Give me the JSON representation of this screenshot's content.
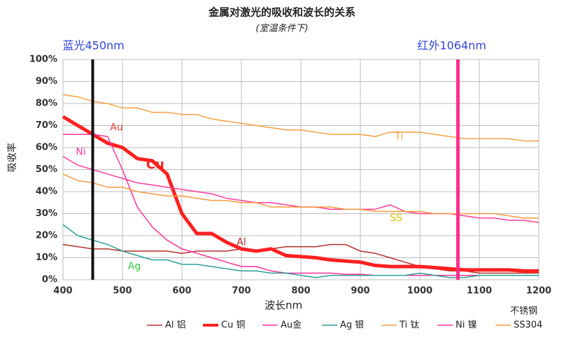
{
  "chart_data": {
    "type": "line",
    "title": "金属对激光的吸收和波长的关系",
    "subtitle": "(室温条件下)",
    "y_label": "吸收率",
    "x_label": "波长nm",
    "x": [
      400,
      425,
      450,
      475,
      500,
      525,
      550,
      575,
      600,
      625,
      650,
      675,
      700,
      725,
      750,
      775,
      800,
      825,
      850,
      875,
      900,
      925,
      950,
      975,
      1000,
      1025,
      1050,
      1075,
      1100,
      1125,
      1150,
      1175,
      1200
    ],
    "xlim": [
      400,
      1200
    ],
    "xticks": [
      400,
      500,
      600,
      700,
      800,
      900,
      1000,
      1100,
      1200
    ],
    "ylim": [
      0,
      100
    ],
    "yticks": [
      {
        "value": 0,
        "label": "0%"
      },
      {
        "value": 10,
        "label": "10%"
      },
      {
        "value": 20,
        "label": "20%"
      },
      {
        "value": 30,
        "label": "30%"
      },
      {
        "value": 40,
        "label": "40%"
      },
      {
        "value": 50,
        "label": "50%"
      },
      {
        "value": 60,
        "label": "60%"
      },
      {
        "value": 70,
        "label": "70%"
      },
      {
        "value": 80,
        "label": "80%"
      },
      {
        "value": 90,
        "label": "90%"
      },
      {
        "value": 100,
        "label": "100%"
      }
    ],
    "grid": true,
    "vlines": [
      {
        "x": 450,
        "label": "蓝光450nm",
        "color": "#111111"
      },
      {
        "x": 1064,
        "label": "红外1064nm",
        "color": "#ff2d8a"
      }
    ],
    "legend_note": "不锈钢",
    "series": [
      {
        "name": "Al 铝",
        "label": "Al",
        "color": "#b5302a",
        "label_color": "#b5302a",
        "width": 1.5,
        "values": [
          16,
          15,
          14,
          14,
          13,
          13,
          13,
          13,
          12,
          13,
          13,
          13,
          14,
          13,
          14,
          15,
          15,
          15,
          16,
          16,
          13,
          12,
          10,
          8,
          6,
          5,
          4,
          4,
          3,
          3,
          3,
          3,
          3
        ]
      },
      {
        "name": "Cu 铜",
        "label": "Cu",
        "color": "#ff2020",
        "label_color": "#ff2020",
        "width": 5,
        "values": [
          74,
          70,
          66,
          62,
          60,
          55,
          54,
          48,
          30,
          21,
          21,
          17,
          14,
          13,
          14,
          11,
          10.5,
          10,
          9,
          8.5,
          8,
          6.5,
          6,
          6,
          6,
          5.5,
          5,
          4.5,
          4.5,
          4.5,
          4.5,
          4,
          4
        ]
      },
      {
        "name": "Au金",
        "label": "Au",
        "color": "#ff3399",
        "label_color": "#e8403a",
        "width": 1.5,
        "values": [
          66,
          66,
          66,
          65,
          50,
          33,
          24,
          18,
          14,
          12,
          10,
          8,
          6,
          6,
          4,
          3,
          3,
          3,
          3,
          2.5,
          2.5,
          2,
          2,
          2,
          2,
          2,
          2,
          2,
          2,
          2,
          2,
          2,
          2
        ]
      },
      {
        "name": "Ag 银",
        "label": "Ag",
        "color": "#2aa198",
        "label_color": "#33cc44",
        "width": 1.5,
        "values": [
          25,
          20,
          18,
          16,
          13,
          11,
          9,
          9,
          7,
          7,
          6,
          5,
          4,
          4,
          3,
          3,
          2,
          1,
          2,
          2,
          2,
          2,
          2,
          2,
          3,
          2,
          1,
          1,
          2,
          2,
          2,
          2,
          2
        ]
      },
      {
        "name": "Ti 钛",
        "label": "Ti",
        "color": "#f5a040",
        "label_color": "#f0a030",
        "width": 1.5,
        "values": [
          84,
          83,
          81,
          80,
          78,
          78,
          76,
          76,
          75,
          75,
          73,
          72,
          71,
          70,
          69,
          68,
          68,
          67,
          66,
          66,
          66,
          65,
          67,
          67,
          67,
          66,
          65,
          64,
          64,
          64,
          64,
          63,
          63
        ]
      },
      {
        "name": "Ni 镍",
        "label": "Ni",
        "color": "#ff3c9c",
        "label_color": "#ff3c9c",
        "width": 1.5,
        "values": [
          56,
          52,
          50,
          48,
          46,
          44,
          43,
          42,
          41,
          40,
          39,
          37,
          36,
          35,
          35,
          34,
          33,
          33,
          32,
          32,
          32,
          32,
          34,
          31,
          30,
          30,
          30,
          29,
          28,
          28,
          27,
          27,
          26
        ]
      },
      {
        "name": "SS304",
        "label": "SS",
        "color": "#f59a3c",
        "label_color": "#e8c000",
        "width": 1.5,
        "values": [
          48,
          45,
          44,
          42,
          42,
          40,
          39,
          38,
          38,
          37,
          36,
          36,
          35,
          35,
          33,
          33,
          33,
          33,
          33,
          32,
          32,
          31,
          31,
          31,
          31,
          30,
          30,
          30,
          30,
          30,
          29,
          28,
          28
        ]
      }
    ]
  }
}
